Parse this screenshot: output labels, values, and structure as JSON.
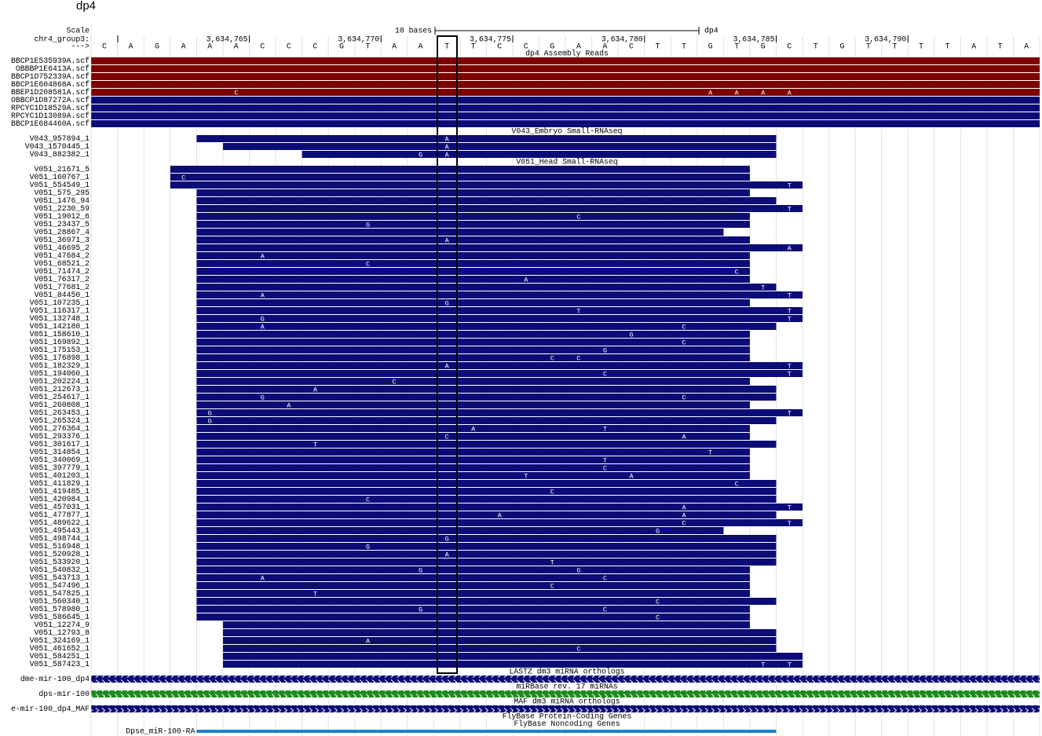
{
  "title": "dp4",
  "scale": {
    "label": "Scale",
    "span": "10 bases",
    "assembly": "dp4"
  },
  "position": {
    "label": "chr4_group3:",
    "strand": "--->",
    "ticks": [
      "3,634,765",
      "3,634,770",
      "3,634,775",
      "3,634,780",
      "3,634,785",
      "3,634,790"
    ],
    "bases": [
      "C",
      "A",
      "G",
      "A",
      "A",
      "A",
      "C",
      "C",
      "C",
      "G",
      "T",
      "A",
      "A",
      "T",
      "T",
      "C",
      "C",
      "G",
      "A",
      "A",
      "C",
      "T",
      "T",
      "G",
      "T",
      "G",
      "C",
      "T",
      "G",
      "T",
      "T",
      "T",
      "T",
      "A",
      "T",
      "A"
    ]
  },
  "groups": [
    {
      "title": "dp4 Assembly Reads",
      "reads": [
        {
          "name": "BBCP1E535939A.scf",
          "color": "#7f0000",
          "start": 0,
          "end": 36,
          "mm": []
        },
        {
          "name": "OBBBP1E6413A.scf",
          "color": "#7f0000",
          "start": 0,
          "end": 36,
          "mm": []
        },
        {
          "name": "BBCP1D752339A.scf",
          "color": "#7f0000",
          "start": 0,
          "end": 36,
          "mm": []
        },
        {
          "name": "BBCP1E604868A.scf",
          "color": "#7f0000",
          "start": 0,
          "end": 36,
          "mm": []
        },
        {
          "name": "BBEP1D208581A.scf",
          "color": "#7f0000",
          "start": 0,
          "end": 36,
          "mm": [
            [
              5,
              "C"
            ],
            [
              23,
              "A"
            ],
            [
              24,
              "A"
            ],
            [
              25,
              "A"
            ],
            [
              26,
              "A"
            ]
          ]
        },
        {
          "name": "OBBCP1D87272A.scf",
          "color": "#0c0c78",
          "start": 0,
          "end": 36,
          "mm": []
        },
        {
          "name": "RPCYC1D18529A.scf",
          "color": "#0c0c78",
          "start": 0,
          "end": 36,
          "mm": []
        },
        {
          "name": "RPCYC1D13089A.scf",
          "color": "#0c0c78",
          "start": 0,
          "end": 36,
          "mm": []
        },
        {
          "name": "BBCP1E684460A.scf",
          "color": "#0c0c78",
          "start": 0,
          "end": 36,
          "mm": []
        }
      ]
    },
    {
      "title": "V043_Embryo Small-RNAseq",
      "color": "#0c0c78",
      "reads": [
        {
          "name": "V043_957894_1",
          "start": 4,
          "end": 26,
          "mm": [
            [
              13,
              "A"
            ]
          ]
        },
        {
          "name": "V043_1570445_1",
          "start": 5,
          "end": 26,
          "mm": [
            [
              13,
              "A"
            ]
          ]
        },
        {
          "name": "V043_882382_1",
          "start": 8,
          "end": 26,
          "mm": [
            [
              12,
              "G"
            ],
            [
              13,
              "A"
            ]
          ]
        }
      ]
    },
    {
      "title": "V051_Head Small-RNAseq",
      "color": "#0c0c78",
      "reads": [
        {
          "name": "V051_21671_5",
          "start": 3,
          "end": 25,
          "mm": []
        },
        {
          "name": "V051_160767_1",
          "start": 3,
          "end": 25,
          "mm": [
            [
              3,
              "C"
            ]
          ]
        },
        {
          "name": "V051_554549_1",
          "start": 3,
          "end": 27,
          "mm": [
            [
              26,
              "T"
            ]
          ]
        },
        {
          "name": "V051_575_295",
          "start": 4,
          "end": 25,
          "mm": []
        },
        {
          "name": "V051_1476_94",
          "start": 4,
          "end": 26,
          "mm": []
        },
        {
          "name": "V051_2230_59",
          "start": 4,
          "end": 27,
          "mm": [
            [
              26,
              "T"
            ]
          ]
        },
        {
          "name": "V051_19012_6",
          "start": 4,
          "end": 25,
          "mm": [
            [
              18,
              "C"
            ]
          ]
        },
        {
          "name": "V051_23437_5",
          "start": 4,
          "end": 25,
          "mm": [
            [
              10,
              "G"
            ]
          ]
        },
        {
          "name": "V051_28867_4",
          "start": 4,
          "end": 24,
          "mm": []
        },
        {
          "name": "V051_36971_3",
          "start": 4,
          "end": 25,
          "mm": [
            [
              13,
              "A"
            ]
          ]
        },
        {
          "name": "V051_46695_2",
          "start": 4,
          "end": 27,
          "mm": [
            [
              26,
              "A"
            ]
          ]
        },
        {
          "name": "V051_47684_2",
          "start": 4,
          "end": 25,
          "mm": [
            [
              6,
              "A"
            ]
          ]
        },
        {
          "name": "V051_68521_2",
          "start": 4,
          "end": 25,
          "mm": [
            [
              10,
              "C"
            ]
          ]
        },
        {
          "name": "V051_71474_2",
          "start": 4,
          "end": 25,
          "mm": [
            [
              24,
              "C"
            ]
          ]
        },
        {
          "name": "V051_76317_2",
          "start": 4,
          "end": 25,
          "mm": [
            [
              16,
              "A"
            ]
          ]
        },
        {
          "name": "V051_77681_2",
          "start": 4,
          "end": 26,
          "mm": [
            [
              25,
              "T"
            ]
          ]
        },
        {
          "name": "V051_84450_1",
          "start": 4,
          "end": 27,
          "mm": [
            [
              6,
              "A"
            ],
            [
              26,
              "T"
            ]
          ]
        },
        {
          "name": "V051_107235_1",
          "start": 4,
          "end": 25,
          "mm": [
            [
              13,
              "G"
            ]
          ]
        },
        {
          "name": "V051_116317_1",
          "start": 4,
          "end": 27,
          "mm": [
            [
              18,
              "T"
            ],
            [
              26,
              "T"
            ]
          ]
        },
        {
          "name": "V051_132748_1",
          "start": 4,
          "end": 27,
          "mm": [
            [
              6,
              "G"
            ],
            [
              26,
              "T"
            ]
          ]
        },
        {
          "name": "V051_142180_1",
          "start": 4,
          "end": 26,
          "mm": [
            [
              6,
              "A"
            ],
            [
              22,
              "C"
            ]
          ]
        },
        {
          "name": "V051_158610_1",
          "start": 4,
          "end": 25,
          "mm": [
            [
              20,
              "G"
            ]
          ]
        },
        {
          "name": "V051_169892_1",
          "start": 4,
          "end": 25,
          "mm": [
            [
              22,
              "C"
            ]
          ]
        },
        {
          "name": "V051_175153_1",
          "start": 4,
          "end": 25,
          "mm": [
            [
              19,
              "G"
            ]
          ]
        },
        {
          "name": "V051_176898_1",
          "start": 4,
          "end": 25,
          "mm": [
            [
              17,
              "C"
            ],
            [
              18,
              "C"
            ]
          ]
        },
        {
          "name": "V051_182329_1",
          "start": 4,
          "end": 27,
          "mm": [
            [
              13,
              "A"
            ],
            [
              26,
              "T"
            ]
          ]
        },
        {
          "name": "V051_194060_1",
          "start": 4,
          "end": 27,
          "mm": [
            [
              19,
              "C"
            ],
            [
              26,
              "T"
            ]
          ]
        },
        {
          "name": "V051_202224_1",
          "start": 4,
          "end": 25,
          "mm": [
            [
              11,
              "C"
            ]
          ]
        },
        {
          "name": "V051_212673_1",
          "start": 4,
          "end": 26,
          "mm": [
            [
              8,
              "A"
            ]
          ]
        },
        {
          "name": "V051_254617_1",
          "start": 4,
          "end": 26,
          "mm": [
            [
              6,
              "G"
            ],
            [
              22,
              "C"
            ]
          ]
        },
        {
          "name": "V051_260808_1",
          "start": 4,
          "end": 25,
          "mm": [
            [
              7,
              "A"
            ]
          ]
        },
        {
          "name": "V051_263453_1",
          "start": 4,
          "end": 27,
          "mm": [
            [
              4,
              "G"
            ],
            [
              26,
              "T"
            ]
          ]
        },
        {
          "name": "V051_265324_1",
          "start": 4,
          "end": 26,
          "mm": [
            [
              4,
              "G"
            ]
          ]
        },
        {
          "name": "V051_276364_1",
          "start": 4,
          "end": 25,
          "mm": [
            [
              14,
              "A"
            ],
            [
              19,
              "T"
            ]
          ]
        },
        {
          "name": "V051_293376_1",
          "start": 4,
          "end": 25,
          "mm": [
            [
              13,
              "C"
            ],
            [
              22,
              "A"
            ]
          ]
        },
        {
          "name": "V051_301617_1",
          "start": 4,
          "end": 26,
          "mm": [
            [
              8,
              "T"
            ]
          ]
        },
        {
          "name": "V051_314854_1",
          "start": 4,
          "end": 25,
          "mm": [
            [
              23,
              "T"
            ]
          ]
        },
        {
          "name": "V051_340069_1",
          "start": 4,
          "end": 25,
          "mm": [
            [
              19,
              "T"
            ]
          ]
        },
        {
          "name": "V051_397779_1",
          "start": 4,
          "end": 25,
          "mm": [
            [
              19,
              "C"
            ]
          ]
        },
        {
          "name": "V051_401203_1",
          "start": 4,
          "end": 25,
          "mm": [
            [
              16,
              "T"
            ],
            [
              20,
              "A"
            ]
          ]
        },
        {
          "name": "V051_411829_1",
          "start": 4,
          "end": 26,
          "mm": [
            [
              24,
              "C"
            ]
          ]
        },
        {
          "name": "V051_419485_1",
          "start": 4,
          "end": 26,
          "mm": [
            [
              17,
              "C"
            ]
          ]
        },
        {
          "name": "V051_420984_1",
          "start": 4,
          "end": 26,
          "mm": [
            [
              10,
              "C"
            ]
          ]
        },
        {
          "name": "V051_457031_1",
          "start": 4,
          "end": 27,
          "mm": [
            [
              22,
              "A"
            ],
            [
              26,
              "T"
            ]
          ]
        },
        {
          "name": "V051_477877_1",
          "start": 4,
          "end": 26,
          "mm": [
            [
              15,
              "A"
            ],
            [
              22,
              "A"
            ]
          ]
        },
        {
          "name": "V051_489622_1",
          "start": 4,
          "end": 27,
          "mm": [
            [
              22,
              "C"
            ],
            [
              26,
              "T"
            ]
          ]
        },
        {
          "name": "V051_495443_1",
          "start": 4,
          "end": 24,
          "mm": [
            [
              21,
              "G"
            ]
          ]
        },
        {
          "name": "V051_498744_1",
          "start": 4,
          "end": 26,
          "mm": [
            [
              13,
              "G"
            ]
          ]
        },
        {
          "name": "V051_516948_1",
          "start": 4,
          "end": 26,
          "mm": [
            [
              10,
              "G"
            ]
          ]
        },
        {
          "name": "V051_520928_1",
          "start": 4,
          "end": 26,
          "mm": [
            [
              13,
              "A"
            ]
          ]
        },
        {
          "name": "V051_533920_1",
          "start": 4,
          "end": 26,
          "mm": [
            [
              17,
              "T"
            ]
          ]
        },
        {
          "name": "V051_540832_1",
          "start": 4,
          "end": 25,
          "mm": [
            [
              12,
              "G"
            ],
            [
              18,
              "G"
            ]
          ]
        },
        {
          "name": "V051_543713_1",
          "start": 4,
          "end": 25,
          "mm": [
            [
              6,
              "A"
            ],
            [
              19,
              "C"
            ]
          ]
        },
        {
          "name": "V051_547496_1",
          "start": 4,
          "end": 25,
          "mm": [
            [
              17,
              "C"
            ]
          ]
        },
        {
          "name": "V051_547825_1",
          "start": 4,
          "end": 25,
          "mm": [
            [
              8,
              "T"
            ]
          ]
        },
        {
          "name": "V051_560340_1",
          "start": 4,
          "end": 26,
          "mm": [
            [
              21,
              "C"
            ]
          ]
        },
        {
          "name": "V051_578980_1",
          "start": 4,
          "end": 25,
          "mm": [
            [
              12,
              "G"
            ],
            [
              19,
              "C"
            ]
          ]
        },
        {
          "name": "V051_586645_1",
          "start": 4,
          "end": 25,
          "mm": [
            [
              21,
              "C"
            ]
          ]
        },
        {
          "name": "V051_12274_9",
          "start": 5,
          "end": 25,
          "mm": []
        },
        {
          "name": "V051_12793_8",
          "start": 5,
          "end": 26,
          "mm": []
        },
        {
          "name": "V051_324169_1",
          "start": 5,
          "end": 26,
          "mm": [
            [
              10,
              "A"
            ]
          ]
        },
        {
          "name": "V051_461652_1",
          "start": 5,
          "end": 26,
          "mm": [
            [
              18,
              "C"
            ]
          ]
        },
        {
          "name": "V051_584251_1",
          "start": 5,
          "end": 27,
          "mm": []
        },
        {
          "name": "V051_587423_1",
          "start": 5,
          "end": 27,
          "mm": [
            [
              25,
              "T"
            ],
            [
              26,
              "T"
            ]
          ]
        }
      ]
    },
    {
      "title": "LASTZ dm3 miRNA orthologs",
      "color": "#0c0c78",
      "style": "chevron",
      "reads": [
        {
          "name": "dme-mir-100_dp4",
          "start": 0,
          "end": 36,
          "mm": []
        }
      ]
    },
    {
      "title": "miRBase rev. 17 miRNAs",
      "color": "#1f8a1f",
      "label_color": "#1f8a1f",
      "style": "chevron",
      "reads": [
        {
          "name": "dps-mir-100",
          "start": 0,
          "end": 36,
          "mm": []
        }
      ]
    },
    {
      "title": "MAF dm3 miRNA orthologs",
      "color": "#0c0c78",
      "label_color": "#0c0c78",
      "style": "chevron",
      "reads": [
        {
          "name": "e-mir-100_dp4_MAF",
          "start": 0,
          "end": 36,
          "mm": []
        }
      ]
    },
    {
      "title": "FlyBase Protein-Coding Genes",
      "color": "#1a6fb8",
      "label_color": "#1a6fb8",
      "reads": []
    },
    {
      "title": "FlyBase Noncoding Genes",
      "color": "#1a7fc8",
      "label_color": "#1a6fb8",
      "style": "line",
      "reads": [
        {
          "name": "Dpse_miR-100-RA",
          "start": 4,
          "end": 26,
          "mm": []
        }
      ]
    }
  ]
}
